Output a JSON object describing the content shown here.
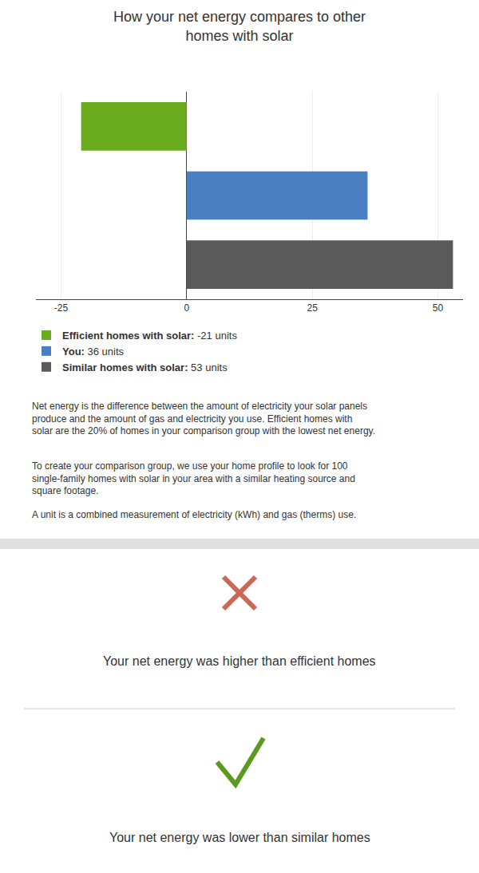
{
  "chart_data": {
    "type": "bar",
    "orientation": "horizontal",
    "title": "How your net energy compares to other homes with solar",
    "categories": [
      null,
      null,
      null
    ],
    "series": [
      {
        "name": "Efficient homes with solar:",
        "color": "#6aaa1e",
        "values": [
          -21,
          null,
          null
        ],
        "value_labels": [
          "-21 units",
          null,
          null
        ]
      },
      {
        "name": "You:",
        "color": "#4a7fc1",
        "values": [
          null,
          36,
          null
        ],
        "value_labels": [
          null,
          "36 units",
          null
        ]
      },
      {
        "name": "Similar homes with solar:",
        "color": "#5a5a5a",
        "values": [
          null,
          null,
          53
        ],
        "value_labels": [
          null,
          null,
          "53 units"
        ]
      }
    ],
    "xlim": [
      -30,
      55
    ],
    "xticks": [
      -25,
      0,
      25,
      50
    ],
    "grid": true,
    "legend": "bottom",
    "tick_labels": "x",
    "annotations": [
      "Net energy is the difference between the amount of electricity your solar panels produce and the amount of gas and electricity you use. Efficient homes with solar are the 20% of homes in your comparison group with the lowest net energy.",
      "To create your comparison group, we use your home profile to look for 100 single-family homes with solar in your area with a similar heating source and square footage.",
      "A unit is a combined measurement of electricity (kWh) and gas (therms) use.",
      "Your net energy was higher than efficient homes",
      "Your net energy was lower than similar homes"
    ]
  }
}
